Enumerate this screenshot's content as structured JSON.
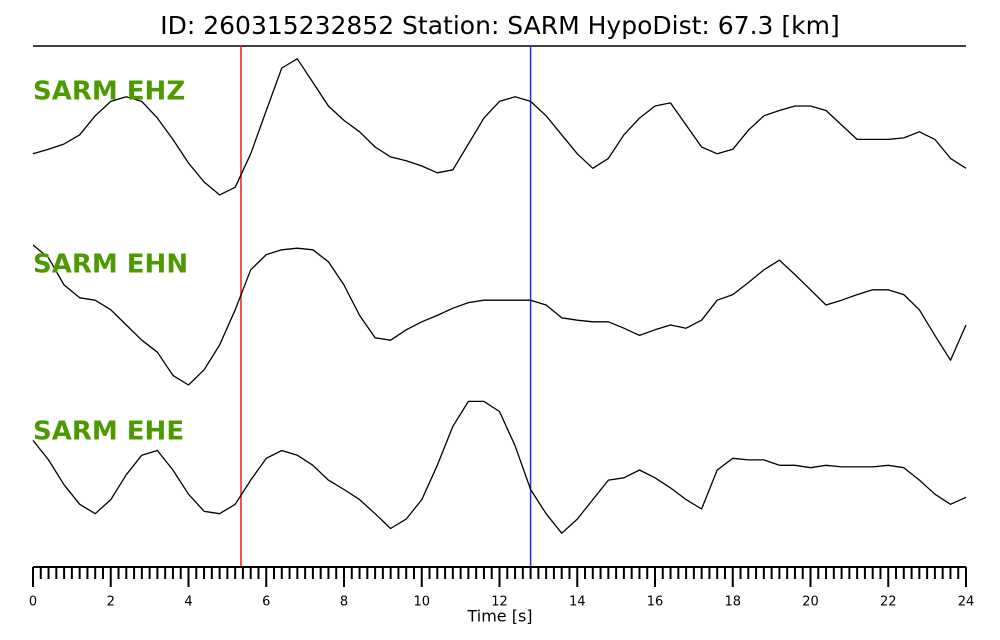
{
  "chart_data": {
    "type": "line",
    "title": "ID: 260315232852   Station: SARM   HypoDist:    67.3 [km]",
    "xlabel": "Time [s]",
    "xlim": [
      0,
      24
    ],
    "xticks": [
      0,
      2,
      4,
      6,
      8,
      10,
      12,
      14,
      16,
      18,
      20,
      22,
      24
    ],
    "xminorticks": [
      0.2,
      0.4,
      0.6,
      0.8,
      1,
      1.2,
      1.4,
      1.6,
      1.8,
      2.2,
      2.4,
      2.6,
      2.8,
      3,
      3.2,
      3.4,
      3.6,
      3.8,
      4.2,
      4.4,
      4.6,
      4.8,
      5,
      5.2,
      5.4,
      5.6,
      5.8,
      6.2,
      6.4,
      6.6,
      6.8,
      7,
      7.2,
      7.4,
      7.6,
      7.8,
      8.2,
      8.4,
      8.6,
      8.8,
      9,
      9.2,
      9.4,
      9.6,
      9.8,
      10.2,
      10.4,
      10.6,
      10.8,
      11,
      11.2,
      11.4,
      11.6,
      11.8,
      12.2,
      12.4,
      12.6,
      12.8,
      13,
      13.2,
      13.4,
      13.6,
      13.8,
      14.2,
      14.4,
      14.6,
      14.8,
      15,
      15.2,
      15.4,
      15.6,
      15.8,
      16.2,
      16.4,
      16.6,
      16.8,
      17,
      17.2,
      17.4,
      17.6,
      17.8,
      18.2,
      18.4,
      18.6,
      18.8,
      19,
      19.2,
      19.4,
      19.6,
      19.8,
      20.2,
      20.4,
      20.6,
      20.8,
      21,
      21.2,
      21.4,
      21.6,
      21.8,
      22.2,
      22.4,
      22.6,
      22.8,
      23,
      23.2,
      23.4,
      23.6,
      23.8
    ],
    "ylim": [
      -1,
      1
    ],
    "label_color": "#4c9a00",
    "picks": [
      {
        "value": 5.35,
        "color": "#e8201a"
      },
      {
        "value": 12.8,
        "color": "#2030d0"
      }
    ],
    "x": [
      0,
      0.4,
      0.8,
      1.2,
      1.6,
      2,
      2.4,
      2.8,
      3.2,
      3.6,
      4,
      4.4,
      4.8,
      5.2,
      5.6,
      6,
      6.4,
      6.8,
      7.2,
      7.6,
      8,
      8.4,
      8.8,
      9.2,
      9.6,
      10,
      10.4,
      10.8,
      11.2,
      11.6,
      12,
      12.4,
      12.8,
      13.2,
      13.6,
      14,
      14.4,
      14.8,
      15.2,
      15.6,
      16,
      16.4,
      16.8,
      17.2,
      17.6,
      18,
      18.4,
      18.8,
      19.2,
      19.6,
      20,
      20.4,
      20.8,
      21.2,
      21.6,
      22,
      22.4,
      22.8,
      23.2,
      23.6,
      24
    ],
    "series": [
      {
        "name": "SARM EHZ",
        "color": "#000000",
        "values": [
          -0.34,
          -0.28,
          -0.21,
          -0.09,
          0.16,
          0.35,
          0.41,
          0.35,
          0.13,
          -0.15,
          -0.46,
          -0.71,
          -0.88,
          -0.78,
          -0.34,
          0.23,
          0.79,
          0.91,
          0.6,
          0.29,
          0.1,
          -0.05,
          -0.25,
          -0.38,
          -0.43,
          -0.5,
          -0.59,
          -0.55,
          -0.21,
          0.13,
          0.35,
          0.41,
          0.35,
          0.16,
          -0.09,
          -0.34,
          -0.53,
          -0.4,
          -0.09,
          0.13,
          0.29,
          0.33,
          0.04,
          -0.25,
          -0.34,
          -0.28,
          -0.03,
          0.16,
          0.23,
          0.29,
          0.29,
          0.23,
          0.04,
          -0.15,
          -0.15,
          -0.15,
          -0.13,
          -0.05,
          -0.15,
          -0.4,
          -0.53
        ]
      },
      {
        "name": "SARM EHN",
        "color": "#000000",
        "values": [
          0.75,
          0.59,
          0.25,
          0.09,
          0.06,
          -0.06,
          -0.25,
          -0.44,
          -0.59,
          -0.88,
          -1.0,
          -0.81,
          -0.5,
          -0.06,
          0.44,
          0.63,
          0.69,
          0.71,
          0.69,
          0.54,
          0.25,
          -0.13,
          -0.41,
          -0.44,
          -0.31,
          -0.21,
          -0.13,
          -0.04,
          0.03,
          0.06,
          0.06,
          0.06,
          0.06,
          0,
          -0.16,
          -0.19,
          -0.21,
          -0.21,
          -0.29,
          -0.38,
          -0.31,
          -0.25,
          -0.29,
          -0.19,
          0.06,
          0.13,
          0.28,
          0.44,
          0.56,
          0.38,
          0.19,
          0,
          0.06,
          0.13,
          0.19,
          0.19,
          0.13,
          -0.06,
          -0.38,
          -0.69,
          -0.25
        ]
      },
      {
        "name": "SARM EHE",
        "color": "#000000",
        "values": [
          0.38,
          0.13,
          -0.19,
          -0.44,
          -0.56,
          -0.38,
          -0.06,
          0.19,
          0.25,
          0,
          -0.31,
          -0.53,
          -0.56,
          -0.44,
          -0.13,
          0.15,
          0.25,
          0.19,
          0.06,
          -0.13,
          -0.25,
          -0.38,
          -0.56,
          -0.75,
          -0.63,
          -0.38,
          0.06,
          0.56,
          0.88,
          0.88,
          0.75,
          0.31,
          -0.25,
          -0.56,
          -0.81,
          -0.63,
          -0.38,
          -0.13,
          -0.1,
          0,
          -0.1,
          -0.23,
          -0.38,
          -0.5,
          0,
          0.15,
          0.13,
          0.13,
          0.06,
          0.06,
          0.03,
          0.06,
          0.04,
          0.04,
          0.04,
          0.06,
          0.03,
          -0.13,
          -0.31,
          -0.44,
          -0.35
        ]
      }
    ]
  }
}
